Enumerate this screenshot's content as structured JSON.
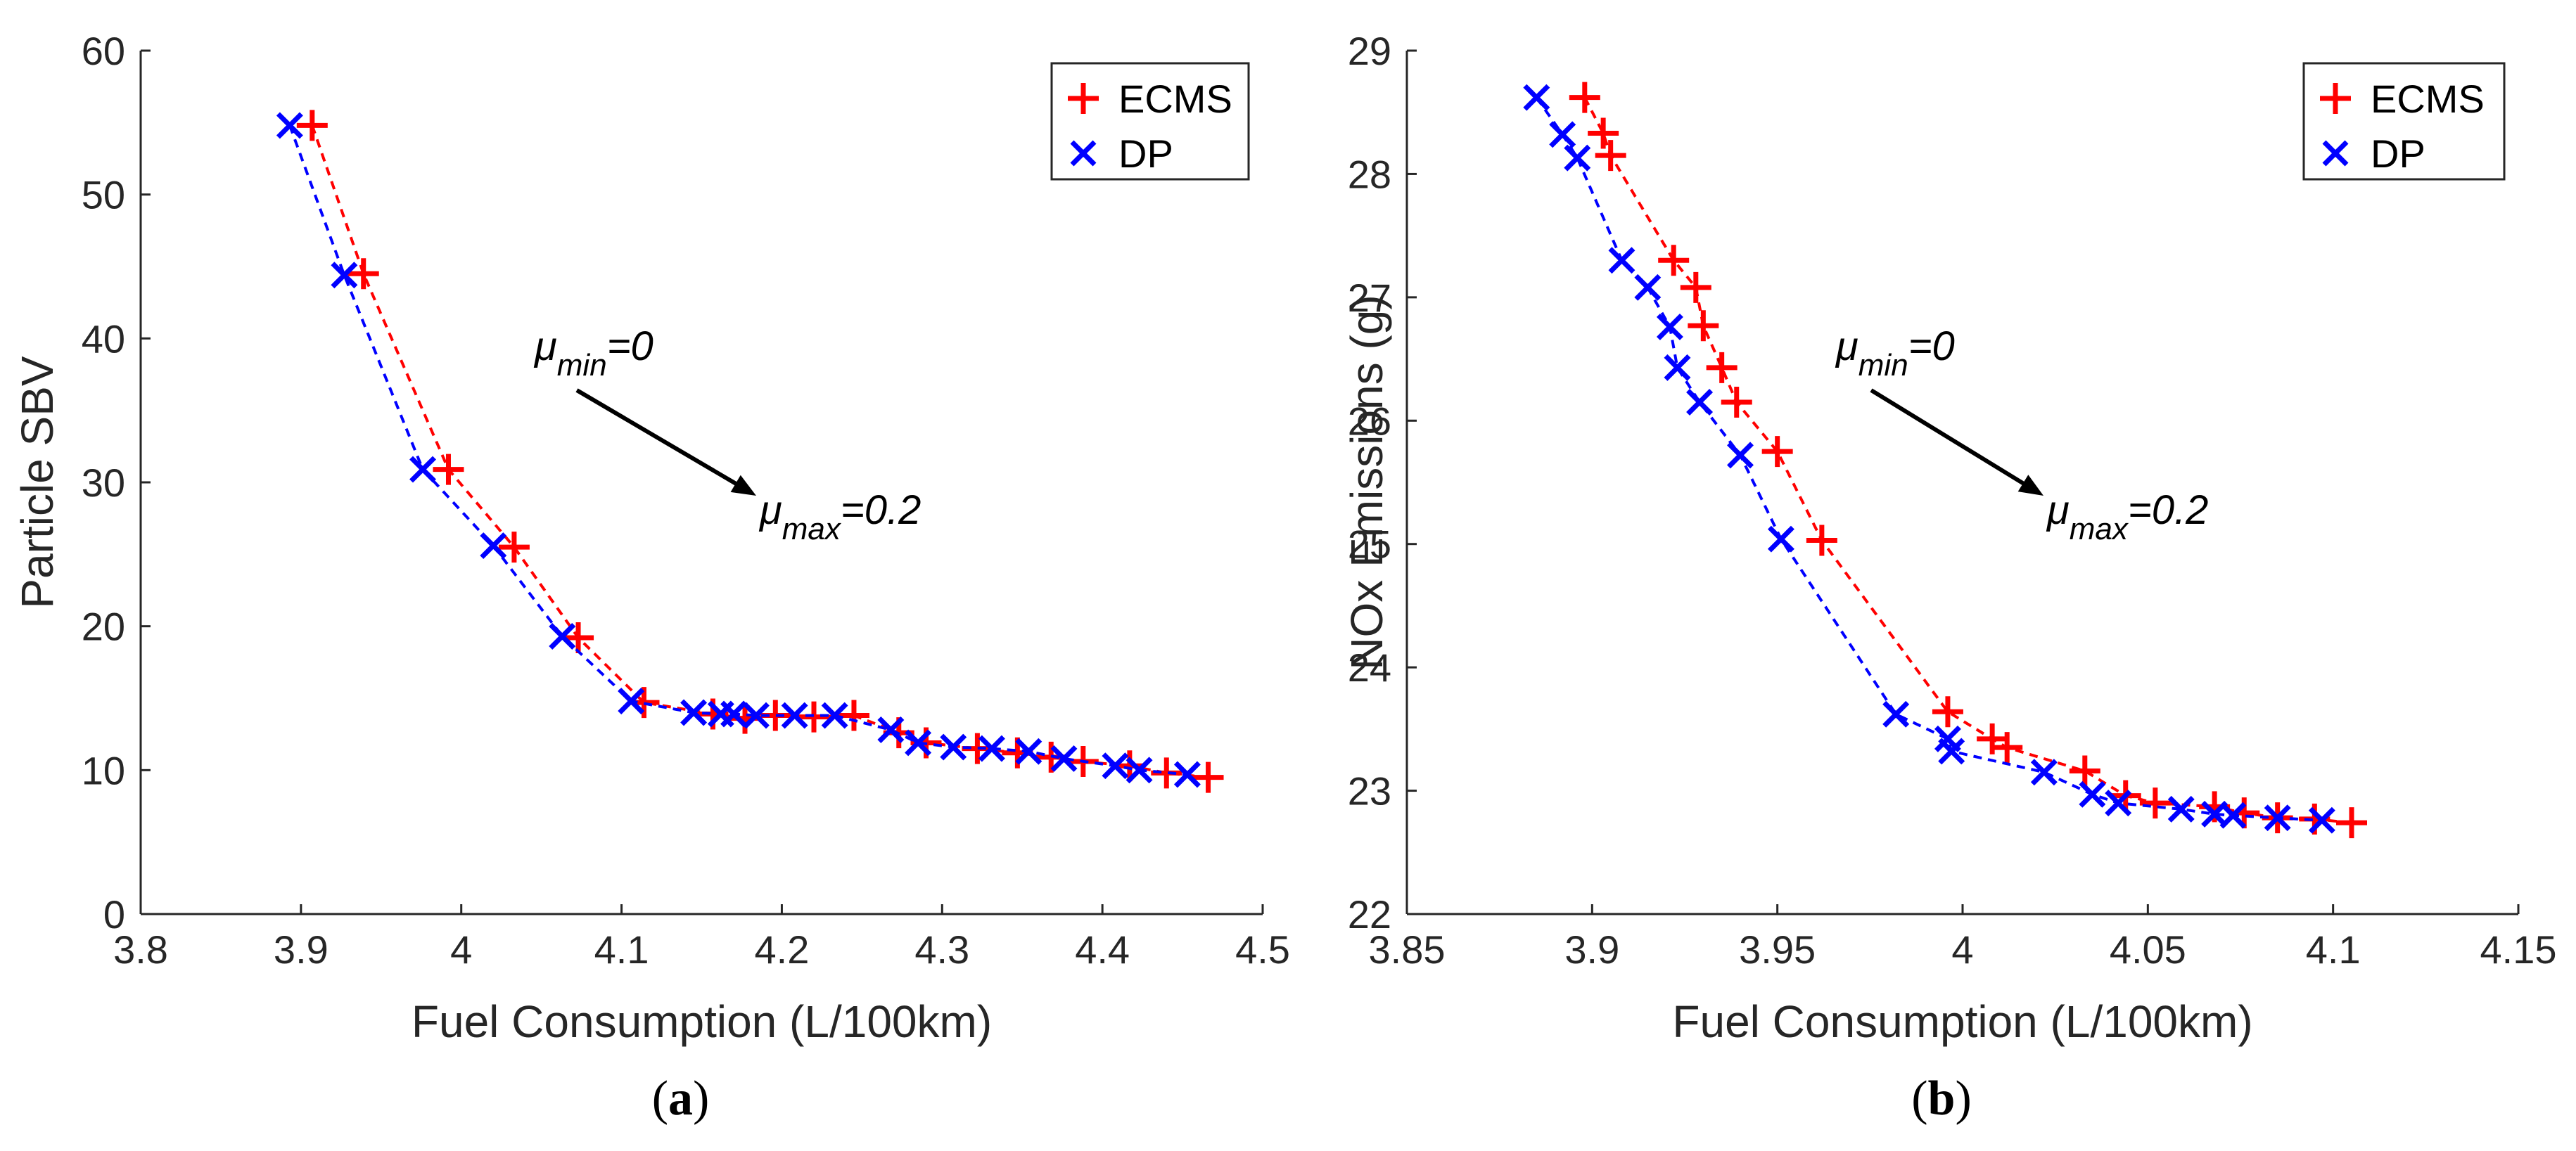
{
  "chart_data": [
    {
      "type": "line",
      "panel_label": "(a)",
      "panel_letter": "a",
      "xlabel": "Fuel Consumption (L/100km)",
      "ylabel": "Particle SBV",
      "xlim": [
        3.8,
        4.5
      ],
      "ylim": [
        0,
        60
      ],
      "xticks": [
        3.8,
        3.9,
        4.0,
        4.1,
        4.2,
        4.3,
        4.4,
        4.5
      ],
      "xtick_labels": [
        "3.8",
        "3.9",
        "4",
        "4.1",
        "4.2",
        "4.3",
        "4.4",
        "4.5"
      ],
      "yticks": [
        0,
        10,
        20,
        30,
        40,
        50,
        60
      ],
      "ytick_labels": [
        "0",
        "10",
        "20",
        "30",
        "40",
        "50",
        "60"
      ],
      "legend_position": "top-right",
      "annotation": {
        "start_base": "μ",
        "start_sub": "min",
        "start_tail": "=0",
        "end_base": "μ",
        "end_sub": "max",
        "end_tail": "=0.2"
      },
      "series": [
        {
          "name": "ECMS",
          "color": "#ff0000",
          "marker": "plus",
          "x": [
            3.907,
            3.939,
            3.992,
            4.033,
            4.073,
            4.114,
            4.157,
            4.177,
            4.196,
            4.22,
            4.245,
            4.273,
            4.29,
            4.322,
            4.347,
            4.368,
            4.388,
            4.417,
            4.44,
            4.466
          ],
          "y": [
            54.8,
            44.5,
            30.9,
            25.5,
            19.2,
            14.7,
            13.9,
            13.6,
            13.8,
            13.7,
            13.8,
            12.6,
            11.9,
            11.5,
            11.2,
            10.9,
            10.6,
            10.3,
            9.8,
            9.5
          ]
        },
        {
          "name": "DP",
          "color": "#0000ff",
          "marker": "x",
          "x": [
            3.893,
            3.927,
            3.976,
            4.02,
            4.063,
            4.106,
            4.145,
            4.162,
            4.17,
            4.184,
            4.208,
            4.233,
            4.268,
            4.285,
            4.307,
            4.331,
            4.354,
            4.376,
            4.408,
            4.423,
            4.453
          ],
          "y": [
            54.8,
            44.4,
            30.9,
            25.6,
            19.3,
            14.8,
            14.0,
            13.9,
            13.9,
            13.8,
            13.8,
            13.8,
            12.8,
            11.9,
            11.6,
            11.5,
            11.3,
            10.8,
            10.3,
            10.0,
            9.7
          ]
        }
      ]
    },
    {
      "type": "line",
      "panel_label": "(b)",
      "panel_letter": "b",
      "xlabel": "Fuel Consumption (L/100km)",
      "ylabel": "NOx Emissions (g)",
      "xlim": [
        3.85,
        4.15
      ],
      "ylim": [
        22,
        29
      ],
      "xticks": [
        3.85,
        3.9,
        3.95,
        4.0,
        4.05,
        4.1,
        4.15
      ],
      "xtick_labels": [
        "3.85",
        "3.9",
        "3.95",
        "4",
        "4.05",
        "4.1",
        "4.15"
      ],
      "yticks": [
        22,
        23,
        24,
        25,
        26,
        27,
        28,
        29
      ],
      "ytick_labels": [
        "22",
        "23",
        "24",
        "25",
        "26",
        "27",
        "28",
        "29"
      ],
      "legend_position": "top-right",
      "annotation": {
        "start_base": "μ",
        "start_sub": "min",
        "start_tail": "=0",
        "end_base": "μ",
        "end_sub": "max",
        "end_tail": "=0.2"
      },
      "series": [
        {
          "name": "ECMS",
          "color": "#ff0000",
          "marker": "plus",
          "x": [
            3.898,
            3.903,
            3.905,
            3.922,
            3.928,
            3.93,
            3.935,
            3.939,
            3.95,
            3.962,
            3.996,
            4.008,
            4.012,
            4.033,
            4.044,
            4.052,
            4.068,
            4.076,
            4.085,
            4.095,
            4.105
          ],
          "y": [
            28.62,
            28.33,
            28.15,
            27.3,
            27.08,
            26.77,
            26.43,
            26.15,
            25.75,
            25.03,
            23.64,
            23.42,
            23.35,
            23.16,
            22.96,
            22.9,
            22.87,
            22.82,
            22.78,
            22.77,
            22.74
          ]
        },
        {
          "name": "DP",
          "color": "#0000ff",
          "marker": "x",
          "x": [
            3.885,
            3.892,
            3.896,
            3.908,
            3.915,
            3.921,
            3.923,
            3.929,
            3.94,
            3.951,
            3.982,
            3.996,
            3.997,
            4.022,
            4.035,
            4.042,
            4.059,
            4.068,
            4.073,
            4.085,
            4.097
          ],
          "y": [
            28.62,
            28.32,
            28.13,
            27.3,
            27.08,
            26.76,
            26.43,
            26.15,
            25.72,
            25.04,
            23.62,
            23.42,
            23.32,
            23.15,
            22.97,
            22.9,
            22.85,
            22.81,
            22.8,
            22.78,
            22.76
          ]
        }
      ]
    }
  ]
}
